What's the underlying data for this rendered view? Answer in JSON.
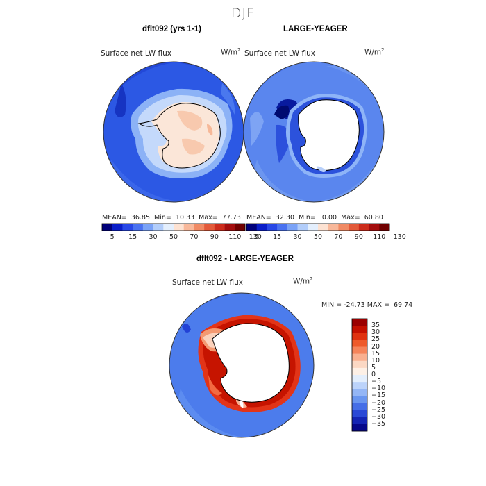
{
  "figure": {
    "season": "DJF"
  },
  "panels": {
    "model": {
      "title": "dflt092 (yrs 1-1)",
      "variable": "Surface net LW flux",
      "unit_base": "W/m",
      "unit_exp": "2",
      "stats_text": "MEAN=  36.85  Min=  10.33  Max=  77.73"
    },
    "obs": {
      "title": "LARGE-YEAGER",
      "variable": "Surface net LW flux",
      "unit_base": "W/m",
      "unit_exp": "2",
      "stats_text": "MEAN=  32.30  Min=   0.00  Max=  60.80"
    },
    "diff": {
      "title": "dflt092 - LARGE-YEAGER",
      "variable": "Surface net LW flux",
      "unit_base": "W/m",
      "unit_exp": "2",
      "minmax_text": "MIN = -24.73 MAX =  69.74"
    }
  },
  "colorbars": {
    "absolute": {
      "labels": [
        "5",
        "15",
        "30",
        "50",
        "70",
        "90",
        "110",
        "130"
      ],
      "colors": [
        "#00007a",
        "#0a1ec8",
        "#2848e6",
        "#4a72f0",
        "#7aa2f6",
        "#b2cdfa",
        "#e4effd",
        "#fde2d2",
        "#f8b89a",
        "#f08a64",
        "#e35a3a",
        "#cc2c1c",
        "#a30d0d",
        "#700000"
      ]
    },
    "difference": {
      "labels": [
        "35",
        "30",
        "25",
        "20",
        "15",
        "10",
        "5",
        "0",
        "−5",
        "−10",
        "−15",
        "−20",
        "−25",
        "−30",
        "−35"
      ],
      "colors": [
        "#9a0000",
        "#c41000",
        "#e03210",
        "#ee5a2a",
        "#f5845a",
        "#f9b090",
        "#fbd8c4",
        "#fdf0e6",
        "#e3eefc",
        "#bcd3fa",
        "#94b6f5",
        "#6a96ef",
        "#456ee6",
        "#2a48d6",
        "#1424b4",
        "#06088a"
      ]
    }
  }
}
